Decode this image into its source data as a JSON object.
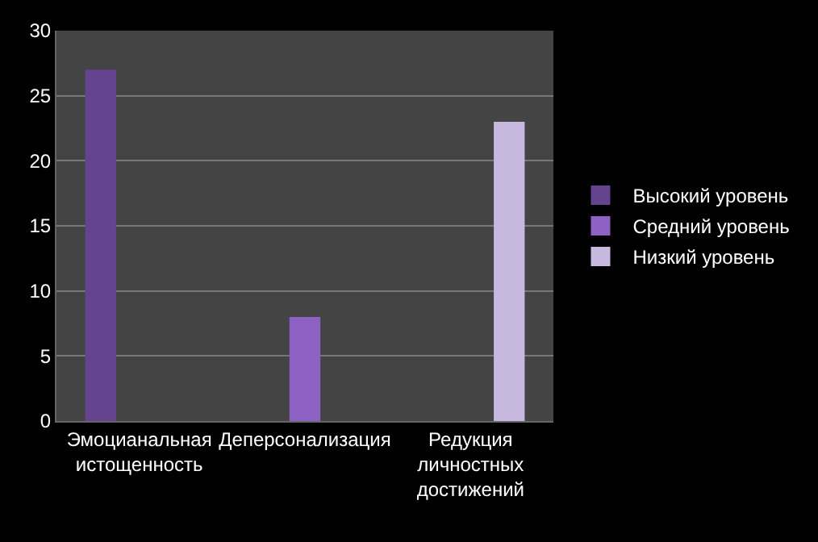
{
  "chart_data": {
    "type": "bar",
    "categories": [
      "Эмоцианальная\nистощенность",
      "Деперсонализация",
      "Редукция\nличностных\nдостижений"
    ],
    "series": [
      {
        "name": "Высокий уровень",
        "color": "#65448f",
        "values": [
          27,
          null,
          null
        ]
      },
      {
        "name": "Средний уровень",
        "color": "#8d62c4",
        "values": [
          null,
          8,
          null
        ]
      },
      {
        "name": "Низкий уровень",
        "color": "#c7b8df",
        "values": [
          null,
          null,
          23
        ]
      }
    ],
    "ylim": [
      0,
      30
    ],
    "yticks": [
      0,
      5,
      10,
      15,
      20,
      25,
      30
    ],
    "grid": "y",
    "legend": "right"
  }
}
